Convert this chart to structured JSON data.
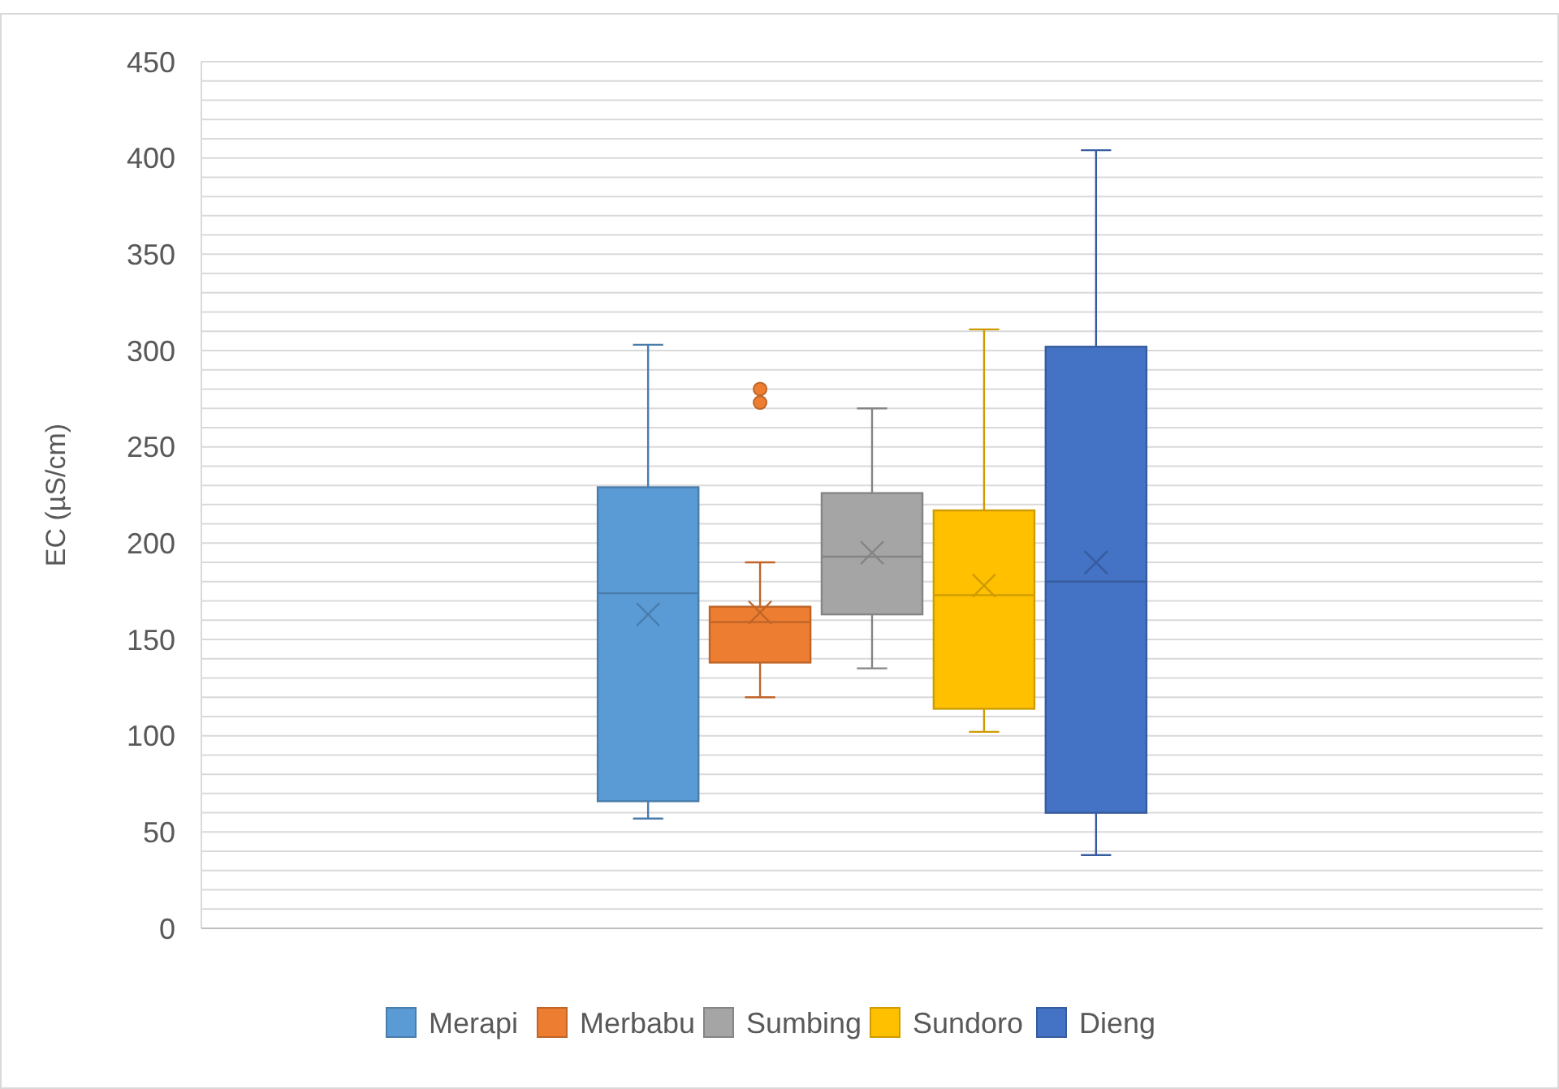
{
  "chart_data": {
    "type": "box",
    "ylabel": "EC (µS/cm)",
    "categories": [
      null
    ],
    "ylim": [
      0,
      450
    ],
    "yticks": [
      0,
      {
        "value": 10,
        "label": null
      },
      {
        "value": 20,
        "label": null
      },
      {
        "value": 30,
        "label": null
      },
      {
        "value": 40,
        "label": null
      },
      50,
      {
        "value": 60,
        "label": null
      },
      {
        "value": 70,
        "label": null
      },
      {
        "value": 80,
        "label": null
      },
      {
        "value": 90,
        "label": null
      },
      100,
      {
        "value": 110,
        "label": null
      },
      {
        "value": 120,
        "label": null
      },
      {
        "value": 130,
        "label": null
      },
      {
        "value": 140,
        "label": null
      },
      150,
      {
        "value": 160,
        "label": null
      },
      {
        "value": 170,
        "label": null
      },
      {
        "value": 180,
        "label": null
      },
      {
        "value": 190,
        "label": null
      },
      200,
      {
        "value": 210,
        "label": null
      },
      {
        "value": 220,
        "label": null
      },
      {
        "value": 230,
        "label": null
      },
      {
        "value": 240,
        "label": null
      },
      250,
      {
        "value": 260,
        "label": null
      },
      {
        "value": 270,
        "label": null
      },
      {
        "value": 280,
        "label": null
      },
      {
        "value": 290,
        "label": null
      },
      300,
      {
        "value": 310,
        "label": null
      },
      {
        "value": 320,
        "label": null
      },
      {
        "value": 330,
        "label": null
      },
      {
        "value": 340,
        "label": null
      },
      350,
      {
        "value": 360,
        "label": null
      },
      {
        "value": 370,
        "label": null
      },
      {
        "value": 380,
        "label": null
      },
      {
        "value": 390,
        "label": null
      },
      400,
      {
        "value": 410,
        "label": null
      },
      {
        "value": 420,
        "label": null
      },
      {
        "value": 430,
        "label": null
      },
      {
        "value": 440,
        "label": null
      },
      450
    ],
    "grid": "y",
    "legend": "bottom",
    "marker": "cross",
    "series": [
      {
        "name": "Merapi",
        "color": "#5b9bd5",
        "boxes": [
          {
            "low": 57,
            "q1": 66,
            "median": 174,
            "q3": 229,
            "high": 303,
            "mean": 163
          }
        ]
      },
      {
        "name": "Merbabu",
        "color": "#ed7d31",
        "boxes": [
          {
            "low": 120,
            "q1": 138,
            "median": 159,
            "q3": 167,
            "high": 190,
            "mean": 164,
            "outliers": [
              280,
              273
            ]
          }
        ]
      },
      {
        "name": "Sumbing",
        "color": "#a5a5a5",
        "boxes": [
          {
            "low": 135,
            "q1": 163,
            "median": 193,
            "q3": 226,
            "high": 270,
            "mean": 195
          }
        ]
      },
      {
        "name": "Sundoro",
        "color": "#ffc000",
        "boxes": [
          {
            "low": 102,
            "q1": 114,
            "median": 173,
            "q3": 217,
            "high": 311,
            "mean": 178
          }
        ]
      },
      {
        "name": "Dieng",
        "color": "#4472c4",
        "boxes": [
          {
            "low": 38,
            "q1": 60,
            "median": 180,
            "q3": 302,
            "high": 404,
            "mean": 190
          }
        ]
      }
    ]
  }
}
